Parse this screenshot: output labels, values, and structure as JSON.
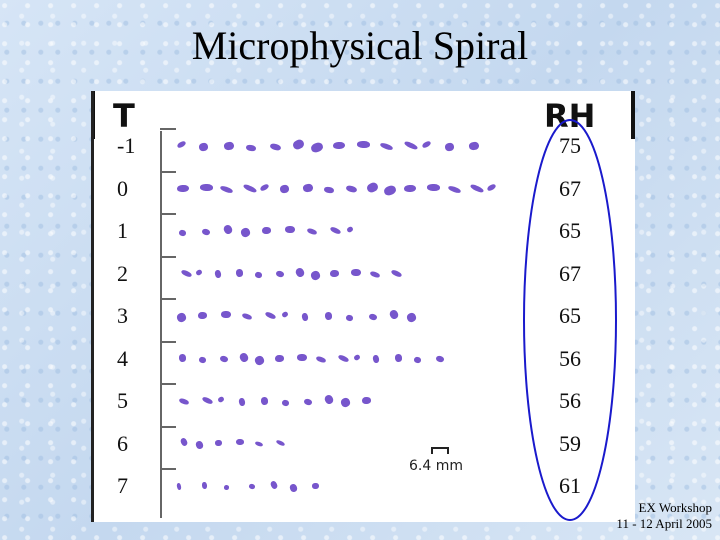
{
  "slide": {
    "title": "Microphysical Spiral"
  },
  "figure": {
    "t_header": "T",
    "rh_header": "RH",
    "scale_label": "6.4 mm",
    "rows": [
      {
        "t": "-1",
        "rh": "75",
        "crystals": 14
      },
      {
        "t": "0",
        "rh": "67",
        "crystals": 16
      },
      {
        "t": "1",
        "rh": "65",
        "crystals": 9
      },
      {
        "t": "2",
        "rh": "67",
        "crystals": 12
      },
      {
        "t": "3",
        "rh": "65",
        "crystals": 12
      },
      {
        "t": "4",
        "rh": "56",
        "crystals": 14
      },
      {
        "t": "5",
        "rh": "56",
        "crystals": 10
      },
      {
        "t": "6",
        "rh": "59",
        "crystals": 6
      },
      {
        "t": "7",
        "rh": "61",
        "crystals": 7
      }
    ]
  },
  "footer": {
    "line1": "EX Workshop",
    "line2": "11 - 12 April 2005"
  },
  "colors": {
    "crystal": "#6b48c8",
    "highlight_ellipse": "#1a1acc"
  }
}
